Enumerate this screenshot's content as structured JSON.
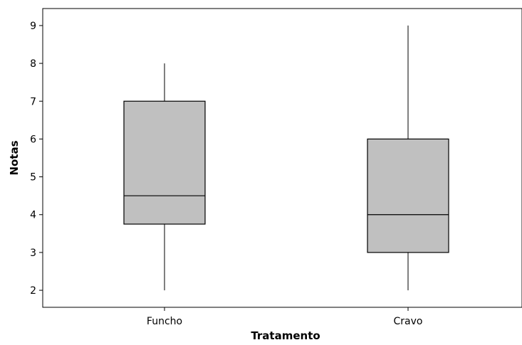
{
  "chart_data": {
    "type": "boxplot",
    "title": "",
    "xlabel": "Tratamento",
    "ylabel": "Notas",
    "ylim": [
      1.55,
      9.45
    ],
    "yticks": [
      2,
      3,
      4,
      5,
      6,
      7,
      8,
      9
    ],
    "categories": [
      "Funcho",
      "Cravo"
    ],
    "boxes": [
      {
        "category": "Funcho",
        "min": 2,
        "q1": 3.75,
        "median": 4.5,
        "q3": 7,
        "max": 8
      },
      {
        "category": "Cravo",
        "min": 2,
        "q1": 3,
        "median": 4,
        "q3": 6,
        "max": 9
      }
    ],
    "box_fill": "#c0c0c0",
    "grid": false,
    "legend": "none"
  }
}
